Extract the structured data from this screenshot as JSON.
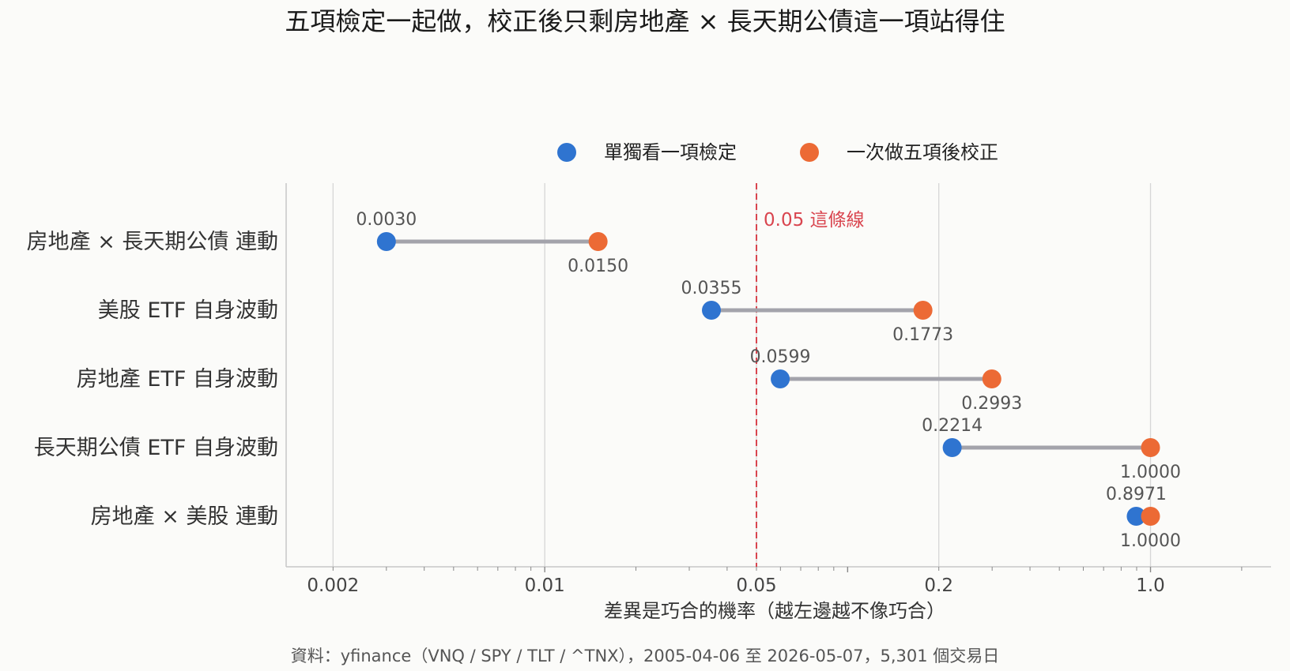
{
  "chart_data": {
    "type": "scatter",
    "title": "五項檢定一起做，校正後只剩房地產 × 長天期公債這一項站得住",
    "xlabel": "差異是巧合的機率（越左邊越不像巧合）",
    "ylabel": "",
    "xscale": "log",
    "xlim": [
      0.0014,
      2.5
    ],
    "xticks": [
      0.002,
      0.01,
      0.05,
      0.2,
      1.0
    ],
    "xtick_labels": [
      "0.002",
      "0.01",
      "0.05",
      "0.2",
      "1.0"
    ],
    "grid": "x-major",
    "legend_position": "top-center",
    "categories": [
      "房地產 × 長天期公債 連動",
      "美股 ETF 自身波動",
      "房地產 ETF 自身波動",
      "長天期公債 ETF 自身波動",
      "房地產 × 美股 連動"
    ],
    "series": [
      {
        "name": "單獨看一項檢定",
        "color": "#2f74d0",
        "values": [
          0.003,
          0.0355,
          0.0599,
          0.2214,
          0.8971
        ],
        "labels": [
          "0.0030",
          "0.0355",
          "0.0599",
          "0.2214",
          "0.8971"
        ]
      },
      {
        "name": "一次做五項後校正",
        "color": "#ec6a35",
        "values": [
          0.015,
          0.1773,
          0.2993,
          1.0,
          1.0
        ],
        "labels": [
          "0.0150",
          "0.1773",
          "0.2993",
          "1.0000",
          "1.0000"
        ]
      }
    ],
    "connector_color": "#a3a3ab",
    "threshold": {
      "value": 0.05,
      "label": "0.05 這條線",
      "color": "#d9454f"
    }
  },
  "source": "資料：yfinance（VNQ / SPY / TLT / ^TNX），2005-04-06 至 2026-05-07，5,301 個交易日"
}
